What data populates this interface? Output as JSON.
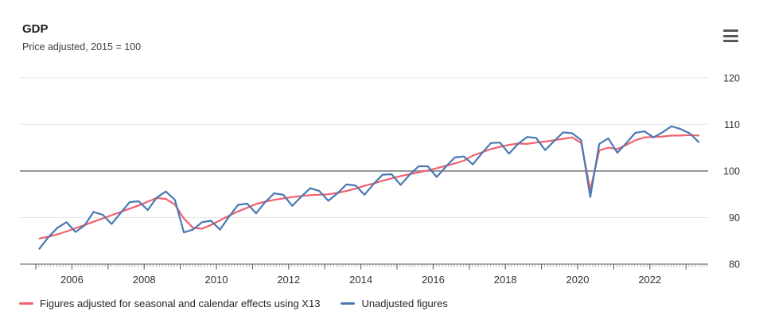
{
  "header": {
    "title": "GDP",
    "subtitle": "Price adjusted, 2015 = 100"
  },
  "menu": {
    "icon": "hamburger-icon"
  },
  "chart_data": {
    "type": "line",
    "title": "GDP",
    "subtitle": "Price adjusted, 2015 = 100",
    "x_unit": "quarter",
    "x_start": "2005-Q1",
    "x_end": "2023-Q2",
    "x_tick_years": [
      2006,
      2008,
      2010,
      2012,
      2014,
      2016,
      2018,
      2020,
      2022
    ],
    "x_minor_tick_unit": "month",
    "x_range_years": [
      2005,
      2023.75
    ],
    "y_ticks": [
      80,
      90,
      100,
      110,
      120
    ],
    "ylim": [
      80,
      120
    ],
    "baseline_value": 100,
    "grid": "horizontal",
    "legend_position": "bottom-left",
    "series": [
      {
        "name": "Figures adjusted for seasonal and calendar effects using X13",
        "color": "#f0616e",
        "values": [
          85.5,
          85.9,
          86.4,
          87.0,
          87.7,
          88.4,
          89.1,
          89.8,
          90.5,
          91.2,
          91.9,
          92.6,
          93.4,
          94.2,
          94.0,
          92.8,
          89.8,
          87.8,
          87.6,
          88.4,
          89.4,
          90.4,
          91.3,
          92.1,
          92.9,
          93.4,
          93.8,
          94.1,
          94.4,
          94.6,
          94.8,
          94.9,
          95.0,
          95.3,
          95.7,
          96.2,
          96.8,
          97.3,
          97.9,
          98.4,
          98.9,
          99.3,
          99.7,
          100.1,
          100.6,
          101.1,
          101.6,
          102.2,
          103.3,
          104.0,
          104.7,
          105.2,
          105.6,
          105.9,
          105.8,
          106.1,
          106.3,
          106.6,
          106.9,
          107.2,
          106.0,
          95.9,
          104.4,
          105.0,
          104.7,
          105.6,
          106.6,
          107.2,
          107.3,
          107.4,
          107.6,
          107.6,
          107.7,
          107.6
        ]
      },
      {
        "name": "Unadjusted figures",
        "color": "#4a79b2",
        "values": [
          83.3,
          85.8,
          87.8,
          89.0,
          86.9,
          88.3,
          91.2,
          90.6,
          88.6,
          91.0,
          93.3,
          93.5,
          91.6,
          94.3,
          95.6,
          93.8,
          86.8,
          87.4,
          89.0,
          89.3,
          87.4,
          90.2,
          92.7,
          93.0,
          90.9,
          93.3,
          95.2,
          94.9,
          92.5,
          94.5,
          96.3,
          95.7,
          93.6,
          95.2,
          97.1,
          96.9,
          94.9,
          97.2,
          99.2,
          99.3,
          97.0,
          99.2,
          101.0,
          101.0,
          98.7,
          100.9,
          102.9,
          103.1,
          101.4,
          103.8,
          106.0,
          106.1,
          103.7,
          105.8,
          107.3,
          107.1,
          104.5,
          106.4,
          108.3,
          108.1,
          106.6,
          94.4,
          105.8,
          107.0,
          103.9,
          106.0,
          108.2,
          108.5,
          107.2,
          108.3,
          109.6,
          109.0,
          108.1,
          106.2
        ]
      }
    ]
  },
  "colors": {
    "grid": "#e8e8e8",
    "baseline": "#7f7f7f",
    "axis": "#5a5a5a",
    "minor_tick": "#9a9a9a",
    "tick_label": "#333333",
    "background": "#ffffff"
  }
}
